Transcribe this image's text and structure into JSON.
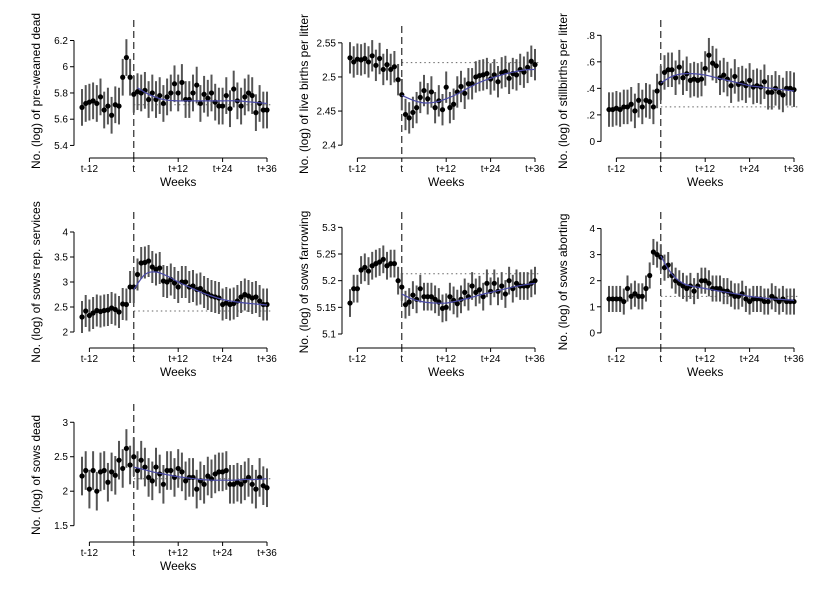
{
  "chart_data": [
    {
      "type": "scatter",
      "ylabel": "No. (log) of pre-weaned dead",
      "xlabel": "Weeks",
      "xticks": [
        {
          "v": -12,
          "label": "t-12"
        },
        {
          "v": 0,
          "label": "t"
        },
        {
          "v": 12,
          "label": "t+12"
        },
        {
          "v": 24,
          "label": "t+24"
        },
        {
          "v": 36,
          "label": "t+36"
        }
      ],
      "ylim": [
        5.35,
        6.28
      ],
      "yticks": [
        5.4,
        5.6,
        5.8,
        6.0,
        6.2
      ],
      "ytick_labels": [
        "5.4",
        "5.6",
        "5.8",
        "6",
        "6.2"
      ],
      "ci_halfwidth": 0.14,
      "reference": 5.71,
      "x": [
        -14,
        -13,
        -12,
        -11,
        -10,
        -9,
        -8,
        -7,
        -6,
        -5,
        -4,
        -3,
        -2,
        -1,
        0,
        1,
        2,
        3,
        4,
        5,
        6,
        7,
        8,
        9,
        10,
        11,
        12,
        13,
        14,
        15,
        16,
        17,
        18,
        19,
        20,
        21,
        22,
        23,
        24,
        25,
        26,
        27,
        28,
        29,
        30,
        31,
        32,
        33,
        34,
        35,
        36
      ],
      "values": [
        5.69,
        5.72,
        5.73,
        5.74,
        5.72,
        5.77,
        5.67,
        5.7,
        5.63,
        5.71,
        5.7,
        5.92,
        6.07,
        5.92,
        5.79,
        5.81,
        5.8,
        5.82,
        5.75,
        5.8,
        5.75,
        5.78,
        5.72,
        5.77,
        5.8,
        5.87,
        5.8,
        5.88,
        5.75,
        5.75,
        5.8,
        5.86,
        5.72,
        5.79,
        5.76,
        5.8,
        5.73,
        5.7,
        5.7,
        5.78,
        5.68,
        5.83,
        5.74,
        5.7,
        5.77,
        5.8,
        5.78,
        5.65,
        5.72,
        5.67,
        5.67
      ],
      "trend_x": [
        1,
        4,
        8,
        12,
        16,
        20,
        24,
        28,
        32,
        36
      ],
      "trend_y": [
        5.84,
        5.79,
        5.75,
        5.74,
        5.74,
        5.74,
        5.74,
        5.74,
        5.73,
        5.72
      ]
    },
    {
      "type": "scatter",
      "ylabel": "No. (log) of live births per litter",
      "xlabel": "Weeks",
      "xticks": [
        {
          "v": -12,
          "label": "t-12"
        },
        {
          "v": 0,
          "label": "t"
        },
        {
          "v": 12,
          "label": "t+12"
        },
        {
          "v": 24,
          "label": "t+24"
        },
        {
          "v": 36,
          "label": "t+36"
        }
      ],
      "ylim": [
        2.39,
        2.56
      ],
      "yticks": [
        2.4,
        2.45,
        2.5,
        2.55
      ],
      "ytick_labels": [
        "2.4",
        "2.45",
        "2.5",
        "2.55"
      ],
      "ci_halfwidth": 0.023,
      "reference": 2.521,
      "x": [
        -14,
        -13,
        -12,
        -11,
        -10,
        -9,
        -8,
        -7,
        -6,
        -5,
        -4,
        -3,
        -2,
        -1,
        0,
        1,
        2,
        3,
        4,
        5,
        6,
        7,
        8,
        9,
        10,
        11,
        12,
        13,
        14,
        15,
        16,
        17,
        18,
        19,
        20,
        21,
        22,
        23,
        24,
        25,
        26,
        27,
        28,
        29,
        30,
        31,
        32,
        33,
        34,
        35,
        36
      ],
      "values": [
        2.528,
        2.522,
        2.526,
        2.525,
        2.527,
        2.522,
        2.531,
        2.517,
        2.527,
        2.511,
        2.518,
        2.511,
        2.515,
        2.496,
        2.474,
        2.445,
        2.44,
        2.448,
        2.455,
        2.47,
        2.48,
        2.468,
        2.478,
        2.455,
        2.465,
        2.452,
        2.485,
        2.455,
        2.46,
        2.478,
        2.486,
        2.476,
        2.49,
        2.49,
        2.5,
        2.502,
        2.503,
        2.505,
        2.497,
        2.503,
        2.493,
        2.506,
        2.508,
        2.498,
        2.505,
        2.503,
        2.511,
        2.507,
        2.514,
        2.523,
        2.518
      ],
      "trend_x": [
        0,
        3,
        6,
        9,
        12,
        15,
        18,
        21,
        24,
        27,
        30,
        33,
        36
      ],
      "trend_y": [
        2.473,
        2.466,
        2.462,
        2.463,
        2.468,
        2.475,
        2.484,
        2.492,
        2.498,
        2.503,
        2.507,
        2.51,
        2.511
      ]
    },
    {
      "type": "scatter",
      "ylabel": "No. (log) of stillbirths per litter",
      "xlabel": "Weeks",
      "xticks": [
        {
          "v": -12,
          "label": "t-12"
        },
        {
          "v": 0,
          "label": "t"
        },
        {
          "v": 12,
          "label": "t+12"
        },
        {
          "v": 24,
          "label": "t+24"
        },
        {
          "v": 36,
          "label": "t+36"
        }
      ],
      "ylim": [
        -0.08,
        0.84
      ],
      "yticks": [
        0,
        0.2,
        0.4,
        0.6,
        0.8
      ],
      "ytick_labels": [
        "0",
        ".2",
        ".4",
        ".6",
        ".8"
      ],
      "ci_halfwidth": 0.13,
      "reference": 0.26,
      "x": [
        -14,
        -13,
        -12,
        -11,
        -10,
        -9,
        -8,
        -7,
        -6,
        -5,
        -4,
        -3,
        -2,
        -1,
        0,
        1,
        2,
        3,
        4,
        5,
        6,
        7,
        8,
        9,
        10,
        11,
        12,
        13,
        14,
        15,
        16,
        17,
        18,
        19,
        20,
        21,
        22,
        23,
        24,
        25,
        26,
        27,
        28,
        29,
        30,
        31,
        32,
        33,
        34,
        35,
        36
      ],
      "values": [
        0.24,
        0.24,
        0.25,
        0.24,
        0.26,
        0.26,
        0.28,
        0.23,
        0.31,
        0.26,
        0.31,
        0.3,
        0.26,
        0.38,
        0.44,
        0.52,
        0.54,
        0.54,
        0.48,
        0.56,
        0.48,
        0.51,
        0.46,
        0.47,
        0.46,
        0.47,
        0.55,
        0.65,
        0.59,
        0.57,
        0.48,
        0.5,
        0.47,
        0.42,
        0.49,
        0.43,
        0.44,
        0.42,
        0.46,
        0.41,
        0.42,
        0.41,
        0.45,
        0.37,
        0.37,
        0.4,
        0.37,
        0.35,
        0.4,
        0.4,
        0.39
      ],
      "trend_x": [
        0,
        3,
        6,
        9,
        12,
        15,
        18,
        21,
        24,
        27,
        30,
        33,
        36
      ],
      "trend_y": [
        0.44,
        0.49,
        0.51,
        0.51,
        0.5,
        0.48,
        0.46,
        0.44,
        0.42,
        0.41,
        0.4,
        0.39,
        0.38
      ]
    },
    {
      "type": "scatter",
      "ylabel": "No. (log) of sows rep. services",
      "xlabel": "Weeks",
      "xticks": [
        {
          "v": -12,
          "label": "t-12"
        },
        {
          "v": 0,
          "label": "t"
        },
        {
          "v": 12,
          "label": "t+12"
        },
        {
          "v": 24,
          "label": "t+24"
        },
        {
          "v": 36,
          "label": "t+36"
        }
      ],
      "ylim": [
        1.8,
        4.2
      ],
      "yticks": [
        2,
        2.5,
        3,
        3.5,
        4
      ],
      "ytick_labels": [
        "2",
        "2.5",
        "3",
        "3.5",
        "4"
      ],
      "ci_halfwidth": 0.32,
      "reference": 2.42,
      "x": [
        -14,
        -13,
        -12,
        -11,
        -10,
        -9,
        -8,
        -7,
        -6,
        -5,
        -4,
        -3,
        -2,
        -1,
        0,
        1,
        2,
        3,
        4,
        5,
        6,
        7,
        8,
        9,
        10,
        11,
        12,
        13,
        14,
        15,
        16,
        17,
        18,
        19,
        20,
        21,
        22,
        23,
        24,
        25,
        26,
        27,
        28,
        29,
        30,
        31,
        32,
        33,
        34,
        35,
        36
      ],
      "values": [
        2.3,
        2.42,
        2.33,
        2.38,
        2.43,
        2.41,
        2.43,
        2.44,
        2.48,
        2.45,
        2.4,
        2.56,
        2.55,
        2.9,
        2.9,
        3.15,
        3.38,
        3.39,
        3.42,
        3.3,
        3.25,
        3.28,
        3.02,
        3.0,
        3.05,
        2.98,
        2.9,
        3.0,
        3.0,
        2.9,
        2.92,
        2.85,
        2.87,
        2.8,
        2.76,
        2.72,
        2.7,
        2.68,
        2.55,
        2.58,
        2.55,
        2.57,
        2.62,
        2.7,
        2.75,
        2.72,
        2.68,
        2.7,
        2.62,
        2.55,
        2.55
      ],
      "trend_x": [
        0,
        3,
        6,
        9,
        12,
        15,
        18,
        21,
        24,
        27,
        30,
        33,
        36
      ],
      "trend_y": [
        2.85,
        3.15,
        3.2,
        3.12,
        3.0,
        2.9,
        2.8,
        2.72,
        2.65,
        2.61,
        2.58,
        2.56,
        2.54
      ]
    },
    {
      "type": "scatter",
      "ylabel": "No. (log) of sows farrowing",
      "xlabel": "Weeks",
      "xticks": [
        {
          "v": -12,
          "label": "t-12"
        },
        {
          "v": 0,
          "label": "t"
        },
        {
          "v": 12,
          "label": "t+12"
        },
        {
          "v": 24,
          "label": "t+24"
        },
        {
          "v": 36,
          "label": "t+36"
        }
      ],
      "ylim": [
        5.085,
        5.31
      ],
      "yticks": [
        5.1,
        5.15,
        5.2,
        5.25,
        5.3
      ],
      "ytick_labels": [
        "5.1",
        "5.15",
        "5.2",
        "5.25",
        "5.3"
      ],
      "ci_halfwidth": 0.026,
      "reference": 5.213,
      "x": [
        -14,
        -13,
        -12,
        -11,
        -10,
        -9,
        -8,
        -7,
        -6,
        -5,
        -4,
        -3,
        -2,
        -1,
        0,
        1,
        2,
        3,
        4,
        5,
        6,
        7,
        8,
        9,
        10,
        11,
        12,
        13,
        14,
        15,
        16,
        17,
        18,
        19,
        20,
        21,
        22,
        23,
        24,
        25,
        26,
        27,
        28,
        29,
        30,
        31,
        32,
        33,
        34,
        35,
        36
      ],
      "values": [
        5.158,
        5.185,
        5.185,
        5.22,
        5.225,
        5.218,
        5.228,
        5.232,
        5.235,
        5.24,
        5.228,
        5.232,
        5.232,
        5.2,
        5.188,
        5.155,
        5.16,
        5.173,
        5.165,
        5.185,
        5.17,
        5.17,
        5.17,
        5.165,
        5.16,
        5.148,
        5.15,
        5.17,
        5.163,
        5.157,
        5.165,
        5.178,
        5.17,
        5.19,
        5.178,
        5.183,
        5.17,
        5.195,
        5.18,
        5.195,
        5.18,
        5.19,
        5.175,
        5.2,
        5.185,
        5.195,
        5.19,
        5.19,
        5.19,
        5.195,
        5.2
      ],
      "trend_x": [
        0,
        3,
        6,
        9,
        12,
        15,
        18,
        21,
        24,
        27,
        30,
        33,
        36
      ],
      "trend_y": [
        5.175,
        5.165,
        5.16,
        5.158,
        5.158,
        5.162,
        5.167,
        5.173,
        5.178,
        5.183,
        5.188,
        5.192,
        5.195
      ]
    },
    {
      "type": "scatter",
      "ylabel": "No. (log) of sows aborting",
      "xlabel": "Weeks",
      "xticks": [
        {
          "v": -12,
          "label": "t-12"
        },
        {
          "v": 0,
          "label": "t"
        },
        {
          "v": 12,
          "label": "t+12"
        },
        {
          "v": 24,
          "label": "t+24"
        },
        {
          "v": 36,
          "label": "t+36"
        }
      ],
      "ylim": [
        -0.35,
        4.25
      ],
      "yticks": [
        0,
        1,
        2,
        3,
        4
      ],
      "ytick_labels": [
        "0",
        "1",
        "2",
        "3",
        "4"
      ],
      "ci_halfwidth": 0.5,
      "reference": 1.4,
      "x": [
        -14,
        -13,
        -12,
        -11,
        -10,
        -9,
        -8,
        -7,
        -6,
        -5,
        -4,
        -3,
        -2,
        -1,
        0,
        1,
        2,
        3,
        4,
        5,
        6,
        7,
        8,
        9,
        10,
        11,
        12,
        13,
        14,
        15,
        16,
        17,
        18,
        19,
        20,
        21,
        22,
        23,
        24,
        25,
        26,
        27,
        28,
        29,
        30,
        31,
        32,
        33,
        34,
        35,
        36
      ],
      "values": [
        1.3,
        1.3,
        1.3,
        1.3,
        1.2,
        1.7,
        1.4,
        1.5,
        1.4,
        1.4,
        1.7,
        2.2,
        3.1,
        3.0,
        2.9,
        2.5,
        2.6,
        2.2,
        2.0,
        1.9,
        1.8,
        1.7,
        1.8,
        1.6,
        1.8,
        2.0,
        2.0,
        1.9,
        1.7,
        1.7,
        1.7,
        1.6,
        1.6,
        1.5,
        1.4,
        1.4,
        1.5,
        1.3,
        1.2,
        1.3,
        1.3,
        1.3,
        1.2,
        1.2,
        1.4,
        1.3,
        1.2,
        1.3,
        1.2,
        1.2,
        1.2
      ],
      "trend_x": [
        0,
        2,
        4,
        6,
        8,
        10,
        12,
        15,
        18,
        21,
        24,
        27,
        30,
        33,
        36
      ],
      "trend_y": [
        2.95,
        2.45,
        2.1,
        1.9,
        1.8,
        1.75,
        1.7,
        1.62,
        1.55,
        1.48,
        1.4,
        1.35,
        1.3,
        1.28,
        1.25
      ]
    },
    {
      "type": "scatter",
      "ylabel": "No. (log) of sows dead",
      "xlabel": "Weeks",
      "xticks": [
        {
          "v": -12,
          "label": "t-12"
        },
        {
          "v": 0,
          "label": "t"
        },
        {
          "v": 12,
          "label": "t+12"
        },
        {
          "v": 24,
          "label": "t+24"
        },
        {
          "v": 36,
          "label": "t+36"
        }
      ],
      "ylim": [
        1.35,
        3.12
      ],
      "yticks": [
        1.5,
        2,
        2.5,
        3
      ],
      "ytick_labels": [
        "1.5",
        "2",
        "2.5",
        "3"
      ],
      "ci_halfwidth": 0.28,
      "reference": 2.18,
      "x": [
        -14,
        -13,
        -12,
        -11,
        -10,
        -9,
        -8,
        -7,
        -6,
        -5,
        -4,
        -3,
        -2,
        -1,
        0,
        1,
        2,
        3,
        4,
        5,
        6,
        7,
        8,
        9,
        10,
        11,
        12,
        13,
        14,
        15,
        16,
        17,
        18,
        19,
        20,
        21,
        22,
        23,
        24,
        25,
        26,
        27,
        28,
        29,
        30,
        31,
        32,
        33,
        34,
        35,
        36
      ],
      "values": [
        2.22,
        2.3,
        2.03,
        2.3,
        2.0,
        2.28,
        2.3,
        2.13,
        2.28,
        2.23,
        2.45,
        2.33,
        2.62,
        2.38,
        2.5,
        2.3,
        2.45,
        2.35,
        2.2,
        2.15,
        2.35,
        2.25,
        2.1,
        2.3,
        2.3,
        2.2,
        2.33,
        2.28,
        2.15,
        2.2,
        2.2,
        2.03,
        2.15,
        2.1,
        2.22,
        2.18,
        2.25,
        2.28,
        2.28,
        2.3,
        2.1,
        2.1,
        2.13,
        2.1,
        2.15,
        2.2,
        2.1,
        2.03,
        2.2,
        2.08,
        2.05
      ],
      "trend_x": [
        0,
        3,
        6,
        9,
        12,
        15,
        18,
        21,
        24,
        27,
        30,
        33,
        36
      ],
      "trend_y": [
        2.35,
        2.31,
        2.27,
        2.24,
        2.21,
        2.19,
        2.17,
        2.16,
        2.16,
        2.16,
        2.17,
        2.17,
        2.18
      ]
    }
  ]
}
